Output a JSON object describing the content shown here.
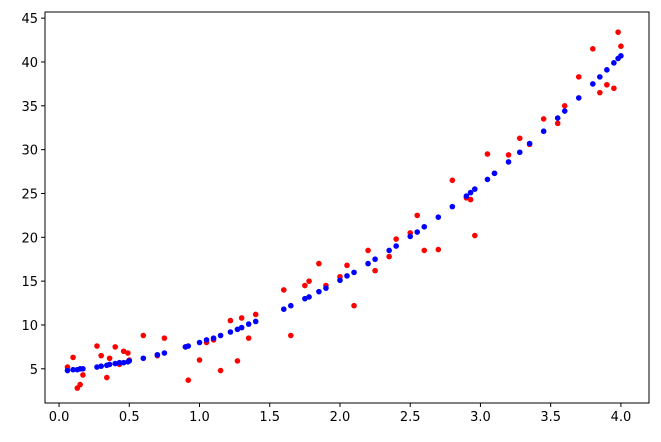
{
  "chart_data": {
    "type": "scatter",
    "x": [
      0.06,
      0.1,
      0.13,
      0.15,
      0.17,
      0.27,
      0.3,
      0.34,
      0.36,
      0.4,
      0.43,
      0.46,
      0.49,
      0.5,
      0.6,
      0.7,
      0.75,
      0.9,
      0.92,
      1.0,
      1.05,
      1.1,
      1.15,
      1.22,
      1.27,
      1.3,
      1.35,
      1.4,
      1.6,
      1.65,
      1.75,
      1.78,
      1.85,
      1.9,
      2.0,
      2.05,
      2.1,
      2.2,
      2.25,
      2.35,
      2.4,
      2.5,
      2.55,
      2.6,
      2.7,
      2.8,
      2.9,
      2.93,
      2.96,
      3.05,
      3.1,
      3.2,
      3.28,
      3.35,
      3.45,
      3.55,
      3.6,
      3.7,
      3.8,
      3.85,
      3.9,
      3.95,
      3.98,
      4.0
    ],
    "series": [
      {
        "color": "#ff0000",
        "values": [
          5.2,
          6.3,
          2.8,
          3.2,
          4.3,
          7.6,
          6.5,
          4.0,
          6.2,
          7.5,
          5.5,
          7.0,
          6.8,
          6.0,
          8.8,
          6.5,
          8.5,
          7.5,
          3.7,
          6.0,
          8.0,
          8.3,
          4.8,
          10.5,
          5.9,
          10.8,
          8.5,
          11.2,
          14.0,
          8.8,
          14.5,
          15.0,
          17.0,
          14.5,
          15.5,
          16.8,
          12.2,
          18.5,
          16.2,
          17.8,
          19.8,
          20.5,
          22.5,
          18.5,
          18.6,
          26.5,
          24.5,
          24.3,
          20.2,
          29.5,
          27.3,
          29.4,
          31.3,
          30.6,
          33.5,
          33.0,
          35.0,
          38.3,
          41.5,
          36.5,
          37.4,
          37.0,
          43.4,
          41.8
        ]
      },
      {
        "color": "#0000ff",
        "values": [
          4.8,
          4.9,
          4.9,
          5.0,
          5.0,
          5.2,
          5.3,
          5.4,
          5.5,
          5.6,
          5.7,
          5.7,
          5.8,
          5.9,
          6.2,
          6.6,
          6.8,
          7.5,
          7.6,
          8.0,
          8.3,
          8.5,
          8.8,
          9.2,
          9.5,
          9.7,
          10.1,
          10.4,
          11.8,
          12.2,
          13.0,
          13.2,
          13.8,
          14.2,
          15.1,
          15.6,
          16.0,
          17.0,
          17.5,
          18.5,
          19.0,
          20.1,
          20.6,
          21.2,
          22.3,
          23.5,
          24.7,
          25.1,
          25.5,
          26.6,
          27.3,
          28.6,
          29.7,
          30.7,
          32.1,
          33.6,
          34.4,
          35.9,
          37.5,
          38.3,
          39.1,
          39.9,
          40.4,
          40.7
        ]
      }
    ],
    "xlim": [
      -0.1,
      4.2
    ],
    "ylim": [
      1.1,
      45.7
    ],
    "xticks": [
      {
        "value": 0,
        "label": "0.0"
      },
      0.5,
      {
        "value": 1,
        "label": "1.0"
      },
      1.5,
      {
        "value": 2,
        "label": "2.0"
      },
      2.5,
      {
        "value": 3,
        "label": "3.0"
      },
      3.5,
      {
        "value": 4,
        "label": "4.0"
      }
    ],
    "yticks": [
      5,
      10,
      15,
      20,
      25,
      30,
      35,
      40,
      45
    ],
    "grid": false
  }
}
